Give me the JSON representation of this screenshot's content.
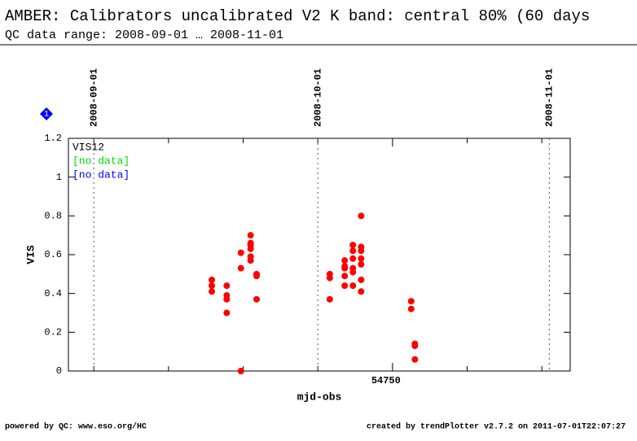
{
  "chart_data": {
    "type": "scatter",
    "title": "AMBER: Calibrators uncalibrated V2 K band: central 80% (60 days",
    "subtitle": "QC data range: 2008-09-01 … 2008-11-01",
    "marker_label": "1",
    "x_label": "mjd-obs",
    "y_label": "VIS",
    "xlim": [
      54706.6,
      54773.8
    ],
    "ylim": [
      0,
      1.2
    ],
    "xticks": [
      54750
    ],
    "x_minor_ticks": [
      54710,
      54720,
      54730,
      54740,
      54760,
      54770
    ],
    "yticks": [
      0,
      0.2,
      0.4,
      0.6,
      0.8,
      1,
      1.2
    ],
    "date_markers": [
      {
        "mjd": 54710,
        "label": "2008-09-01"
      },
      {
        "mjd": 54740,
        "label": "2008-10-01"
      },
      {
        "mjd": 54771,
        "label": "2008-11-01"
      }
    ],
    "series": [
      {
        "name": "VIS12",
        "color": "#ff0000",
        "x": [
          54725.8,
          54725.8,
          54725.8,
          54727.8,
          54727.8,
          54727.8,
          54727.8,
          54729.7,
          54729.7,
          54729.7,
          54731,
          54731,
          54731,
          54731,
          54731,
          54731,
          54731,
          54731.8,
          54731.8,
          54731.8,
          54741.6,
          54741.6,
          54741.6,
          54743.6,
          54743.6,
          54743.6,
          54743.6,
          54743.6,
          54744.7,
          54744.7,
          54744.7,
          54744.7,
          54744.7,
          54744.7,
          54745.8,
          54745.8,
          54745.8,
          54745.8,
          54745.8,
          54745.8,
          54745.8,
          54752.5,
          54752.5,
          54753,
          54753,
          54753
        ],
        "values": [
          0.47,
          0.44,
          0.41,
          0.44,
          0.39,
          0.37,
          0.3,
          0.53,
          0.61,
          0.0,
          0.7,
          0.65,
          0.65,
          0.63,
          0.59,
          0.57,
          0.66,
          0.5,
          0.49,
          0.37,
          0.5,
          0.48,
          0.37,
          0.57,
          0.54,
          0.53,
          0.49,
          0.44,
          0.65,
          0.62,
          0.58,
          0.53,
          0.51,
          0.44,
          0.8,
          0.64,
          0.62,
          0.58,
          0.55,
          0.47,
          0.41,
          0.36,
          0.32,
          0.14,
          0.13,
          0.06
        ]
      },
      {
        "name": "[no data]",
        "color": "#00dd00",
        "x": [],
        "values": []
      },
      {
        "name": "[no data]",
        "color": "#0000ff",
        "x": [],
        "values": []
      }
    ],
    "footer_left": "powered by QC: www.eso.org/HC",
    "footer_right": "created by trendPlotter v2.7.2 on 2011-07-01T22:07:27"
  }
}
